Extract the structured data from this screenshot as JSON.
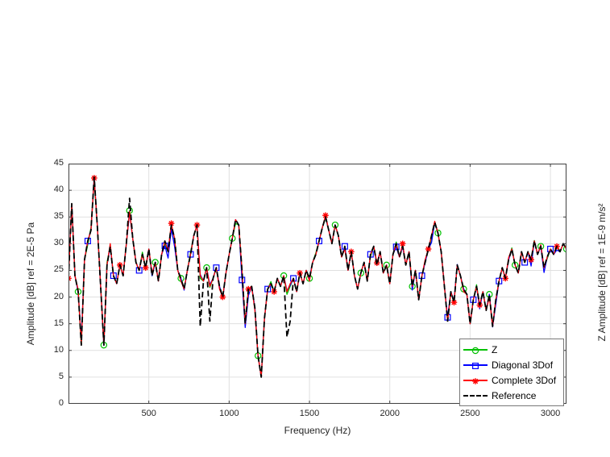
{
  "figure": {
    "xlabel": "Frequency (Hz)",
    "ylabel": "Amplitude [dB] ref = 2E-5 Pa",
    "x_ticks": [
      500,
      1000,
      1500,
      2000,
      2500,
      3000
    ],
    "y_ticks": [
      0,
      5,
      10,
      15,
      20,
      25,
      30,
      35,
      40,
      45
    ],
    "legend": [
      {
        "label": "Z",
        "color": "#00c000",
        "marker": "circle",
        "dash": "solid"
      },
      {
        "label": "Diagonal 3Dof",
        "color": "#0000ff",
        "marker": "square",
        "dash": "solid"
      },
      {
        "label": "Complete 3Dof",
        "color": "#ff0000",
        "marker": "asterisk",
        "dash": "solid"
      },
      {
        "label": "Reference",
        "color": "#000000",
        "marker": "none",
        "dash": "dashed"
      }
    ]
  },
  "adjacent_figure": {
    "ylabel_partial": "Z Amplitude [dB] ref = 1E-9 m/s²"
  },
  "chart_data": {
    "type": "line",
    "title": "",
    "xlabel": "Frequency (Hz)",
    "ylabel": "Amplitude [dB] ref = 2E-5 Pa",
    "xlim": [
      0,
      3100
    ],
    "ylim": [
      0,
      45
    ],
    "grid": true,
    "legend_position": "inside-bottom-right",
    "x_hz": {
      "start": 0,
      "step": 20,
      "count": 156
    },
    "series": [
      {
        "name": "Z",
        "color": "#00c000",
        "line": "solid",
        "marker": "circle",
        "marker_every": 8,
        "marker_phase": 3,
        "values": [
          23.5,
          37.5,
          24,
          21,
          11,
          27,
          29.8,
          33.0,
          42.0,
          33,
          22,
          11,
          26.5,
          29.5,
          24,
          22.5,
          26,
          24,
          30,
          36.2,
          31,
          26.5,
          25,
          28.4,
          25.5,
          29,
          24,
          26.5,
          23,
          28,
          29.8,
          28.5,
          33.5,
          31,
          25,
          23.5,
          21.5,
          25,
          28.4,
          31.5,
          33.5,
          23.5,
          23,
          25.5,
          21.8,
          23.5,
          25.5,
          22,
          20,
          24.5,
          28,
          31,
          33.8,
          33.5,
          25,
          15,
          21.5,
          22,
          18,
          9,
          5,
          16,
          21.5,
          22.9,
          21,
          23.5,
          22,
          24,
          20.5,
          22.0,
          23.5,
          21,
          24.5,
          22.5,
          25,
          23.5,
          26.5,
          28.3,
          30.5,
          33,
          34.8,
          32.5,
          30,
          33.5,
          31.5,
          27.5,
          29.5,
          25,
          28.5,
          24,
          21.5,
          24.5,
          26.5,
          23,
          27.6,
          29.5,
          26,
          28.5,
          24.5,
          26,
          22.5,
          28,
          30.3,
          27.5,
          29.5,
          26,
          28.5,
          22,
          25,
          19.5,
          24,
          26.5,
          29,
          31.0,
          33.8,
          32,
          28.5,
          22,
          15.5,
          21,
          19,
          26,
          24,
          21.5,
          20.5,
          15,
          19.5,
          22.3,
          18.5,
          21,
          17.5,
          20.5,
          14.5,
          19.5,
          23,
          25.5,
          23.5,
          27,
          29.2,
          26,
          24.5,
          28.5,
          26.5,
          28.5,
          27,
          30.6,
          28,
          29.5,
          25.5,
          27.2,
          29,
          28,
          29.5,
          28.5,
          30,
          29
        ]
      },
      {
        "name": "Diagonal 3Dof",
        "color": "#0000ff",
        "line": "solid",
        "marker": "square",
        "marker_every": 8,
        "marker_phase": 6,
        "values": [
          23.5,
          37.5,
          24,
          21,
          12,
          27,
          30.5,
          32.5,
          42.5,
          33,
          22,
          11,
          26,
          29.5,
          24,
          22.5,
          26,
          24,
          30,
          35.8,
          31,
          26.5,
          25,
          28,
          25.5,
          29,
          24,
          26.5,
          23,
          28,
          29.6,
          27.3,
          32.8,
          29.5,
          25,
          23.5,
          21.3,
          25,
          28,
          31.5,
          33.5,
          24.2,
          23,
          25.5,
          22.3,
          23.5,
          25.5,
          22,
          19.8,
          24.5,
          28,
          31,
          34.5,
          33.5,
          23.2,
          14.3,
          20.3,
          22,
          18,
          9,
          5,
          16,
          21.5,
          22.5,
          21,
          23.5,
          22,
          24,
          21.2,
          22.2,
          23.5,
          21,
          24.5,
          22.5,
          25,
          23.5,
          26.5,
          28,
          30.5,
          33,
          35,
          32.5,
          30,
          33.5,
          31.5,
          27.5,
          29.5,
          25,
          28.5,
          24,
          21.5,
          24.5,
          26.5,
          23,
          28,
          29.5,
          26,
          28.5,
          24.5,
          26,
          22.5,
          28,
          29.4,
          27.5,
          29.5,
          26,
          28.5,
          21.3,
          25,
          19.5,
          24,
          26.5,
          29,
          30.2,
          34,
          32,
          28.5,
          22,
          16.2,
          21,
          19.3,
          26.1,
          24,
          21.5,
          20.5,
          15,
          19.5,
          22,
          17.8,
          21,
          17.5,
          20.5,
          14.4,
          18.7,
          23,
          25.5,
          23.5,
          27,
          29,
          26,
          24.5,
          28.5,
          26.5,
          28.5,
          25.8,
          30.5,
          28,
          29.5,
          24.6,
          27.5,
          29,
          28,
          28.8,
          28.5,
          30,
          29
        ]
      },
      {
        "name": "Complete 3Dof",
        "color": "#ff0000",
        "line": "solid",
        "marker": "asterisk",
        "marker_every": 8,
        "marker_phase": 0,
        "values": [
          23.5,
          37.5,
          24,
          21.4,
          11,
          27,
          30.5,
          32.5,
          42.3,
          33,
          22,
          11,
          26,
          30.0,
          24,
          22.5,
          26,
          24,
          30,
          36.0,
          31,
          26.5,
          25,
          28,
          25.5,
          29,
          24.5,
          26.5,
          23,
          28,
          30.5,
          28.5,
          33.8,
          31,
          25,
          23.0,
          21.5,
          25,
          28,
          31.5,
          33.5,
          24.0,
          23,
          25.5,
          22.0,
          23.5,
          25.5,
          21.5,
          20,
          24.5,
          28,
          31,
          34.5,
          33.5,
          25,
          15,
          21.5,
          22,
          17.5,
          9,
          5,
          16,
          21.5,
          22.5,
          21,
          23.5,
          22,
          24,
          21.0,
          22.5,
          23.5,
          21,
          24.5,
          22.5,
          25,
          23.0,
          26.5,
          28,
          30.5,
          33,
          35.3,
          32.5,
          30,
          33.5,
          31.5,
          27.5,
          29.0,
          25,
          28.5,
          24,
          21.5,
          24.5,
          26.5,
          23,
          28,
          29.5,
          26.4,
          28.5,
          24.5,
          26,
          22.5,
          28,
          30,
          27.5,
          30.0,
          26,
          28.5,
          22,
          25,
          19.5,
          24,
          27.0,
          29,
          31.5,
          34.2,
          32,
          28.5,
          22,
          15.5,
          21,
          19,
          26,
          24,
          21.0,
          20.5,
          15,
          19.5,
          22,
          18.5,
          21,
          17.5,
          20.0,
          14.5,
          19.5,
          23,
          25.5,
          23.5,
          27.4,
          29,
          26,
          24.5,
          28.5,
          26.5,
          28.5,
          27,
          30.5,
          28,
          29.8,
          25.5,
          27.5,
          29,
          28,
          29.5,
          28.5,
          30,
          29
        ]
      },
      {
        "name": "Reference",
        "color": "#000000",
        "line": "dashed",
        "marker": "none",
        "marker_every": 0,
        "marker_phase": 0,
        "values": [
          23.5,
          37.5,
          24,
          21,
          11,
          27,
          30.5,
          32.5,
          42.5,
          33,
          22,
          11,
          26,
          29.5,
          24,
          22.5,
          26,
          24,
          30,
          38.5,
          31,
          26.5,
          25,
          28,
          25.5,
          29,
          24,
          26.5,
          23,
          28,
          30.5,
          28.5,
          33.5,
          31,
          25,
          23.5,
          21.5,
          25,
          28,
          31.5,
          33.5,
          14.5,
          23,
          25.5,
          15.5,
          23.5,
          25.5,
          22,
          20,
          24.5,
          28,
          31,
          34.5,
          33.5,
          25,
          15,
          21.5,
          22,
          18,
          9,
          5,
          16,
          21.5,
          22.5,
          21,
          23.5,
          22,
          24,
          12.5,
          15.5,
          23.5,
          21,
          24.5,
          22.5,
          25,
          23.5,
          26.5,
          28,
          30.5,
          33,
          35,
          32.5,
          30,
          33.5,
          31.5,
          27.5,
          29.5,
          25,
          28.5,
          24,
          21.5,
          24.5,
          26.5,
          23,
          28,
          29.5,
          26,
          28.5,
          24.5,
          26,
          22.5,
          28,
          30,
          27.5,
          29.5,
          26,
          28.5,
          22,
          25,
          19.5,
          24,
          26.5,
          29,
          31.5,
          34,
          32,
          28.5,
          22,
          15.5,
          21,
          19,
          26,
          24,
          21.5,
          20.5,
          15,
          19.5,
          22,
          18.5,
          21,
          17.5,
          20.5,
          14.5,
          19.5,
          23,
          25.5,
          23.5,
          27,
          29,
          26,
          24.5,
          28.5,
          26.5,
          28.5,
          27,
          30.5,
          28,
          29.5,
          25.5,
          27.5,
          29,
          28,
          29.5,
          28.5,
          30,
          29
        ]
      }
    ]
  }
}
